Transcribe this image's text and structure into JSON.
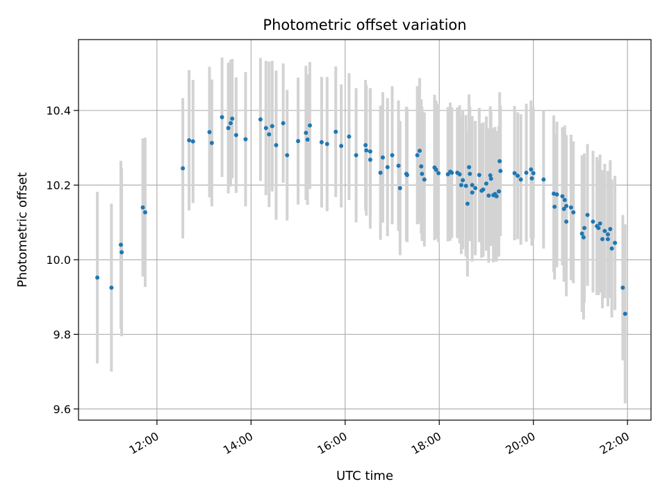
{
  "chart_data": {
    "type": "scatter",
    "title": "Photometric offset variation",
    "xlabel": "UTC time",
    "ylabel": "Photometric offset",
    "x_unit": "UTC time (HH:MM)",
    "xlim": [
      "10:20",
      "22:30"
    ],
    "ylim": [
      9.57,
      10.59
    ],
    "xticks": [
      "12:00",
      "14:00",
      "16:00",
      "18:00",
      "20:00",
      "22:00"
    ],
    "yticks": [
      9.6,
      9.8,
      10.0,
      10.2,
      10.4
    ],
    "ytick_labels": [
      "9.6",
      "9.8",
      "10.0",
      "10.2",
      "10.4"
    ],
    "grid": true,
    "marker_color": "#1f77b4",
    "errorbar_color": "#d3d3d3",
    "points": [
      [
        "10:44",
        9.952,
        0.23
      ],
      [
        "11:02",
        9.925,
        0.225
      ],
      [
        "11:14",
        10.04,
        0.225
      ],
      [
        "11:15",
        10.02,
        0.225
      ],
      [
        "11:42",
        10.14,
        0.185
      ],
      [
        "11:45",
        10.127,
        0.2
      ],
      [
        "12:33",
        10.245,
        0.188
      ],
      [
        "12:41",
        10.32,
        0.188
      ],
      [
        "12:46",
        10.317,
        0.165
      ],
      [
        "13:07",
        10.342,
        0.175
      ],
      [
        "13:10",
        10.313,
        0.17
      ],
      [
        "13:23",
        10.382,
        0.16
      ],
      [
        "13:31",
        10.353,
        0.175
      ],
      [
        "13:34",
        10.366,
        0.17
      ],
      [
        "13:36",
        10.378,
        0.16
      ],
      [
        "13:41",
        10.334,
        0.155
      ],
      [
        "13:53",
        10.323,
        0.18
      ],
      [
        "14:12",
        10.376,
        0.165
      ],
      [
        "14:19",
        10.353,
        0.18
      ],
      [
        "14:23",
        10.336,
        0.195
      ],
      [
        "14:27",
        10.358,
        0.175
      ],
      [
        "14:32",
        10.307,
        0.2
      ],
      [
        "14:41",
        10.366,
        0.16
      ],
      [
        "14:46",
        10.28,
        0.175
      ],
      [
        "15:00",
        10.318,
        0.17
      ],
      [
        "15:10",
        10.34,
        0.18
      ],
      [
        "15:12",
        10.322,
        0.175
      ],
      [
        "15:15",
        10.36,
        0.17
      ],
      [
        "15:30",
        10.315,
        0.175
      ],
      [
        "15:37",
        10.31,
        0.18
      ],
      [
        "15:48",
        10.343,
        0.175
      ],
      [
        "15:55",
        10.305,
        0.165
      ],
      [
        "16:05",
        10.33,
        0.17
      ],
      [
        "16:14",
        10.28,
        0.18
      ],
      [
        "16:26",
        10.307,
        0.175
      ],
      [
        "16:27",
        10.293,
        0.175
      ],
      [
        "16:32",
        10.29,
        0.17
      ],
      [
        "16:32",
        10.268,
        0.185
      ],
      [
        "16:45",
        10.233,
        0.18
      ],
      [
        "16:48",
        10.274,
        0.175
      ],
      [
        "16:54",
        10.248,
        0.185
      ],
      [
        "17:00",
        10.28,
        0.185
      ],
      [
        "17:08",
        10.252,
        0.175
      ],
      [
        "17:10",
        10.192,
        0.18
      ],
      [
        "17:18",
        10.23,
        0.18
      ],
      [
        "17:19",
        10.227,
        0.18
      ],
      [
        "17:32",
        10.28,
        0.185
      ],
      [
        "17:35",
        10.292,
        0.195
      ],
      [
        "17:37",
        10.25,
        0.18
      ],
      [
        "17:38",
        10.23,
        0.18
      ],
      [
        "17:41",
        10.215,
        0.18
      ],
      [
        "17:54",
        10.247,
        0.195
      ],
      [
        "17:56",
        10.241,
        0.185
      ],
      [
        "17:59",
        10.232,
        0.185
      ],
      [
        "18:11",
        10.229,
        0.18
      ],
      [
        "18:14",
        10.236,
        0.185
      ],
      [
        "18:16",
        10.233,
        0.175
      ],
      [
        "18:23",
        10.233,
        0.175
      ],
      [
        "18:26",
        10.229,
        0.185
      ],
      [
        "18:28",
        10.2,
        0.185
      ],
      [
        "18:30",
        10.213,
        0.185
      ],
      [
        "18:34",
        10.198,
        0.19
      ],
      [
        "18:36",
        10.15,
        0.195
      ],
      [
        "18:38",
        10.248,
        0.195
      ],
      [
        "18:39",
        10.23,
        0.18
      ],
      [
        "18:42",
        10.2,
        0.185
      ],
      [
        "18:42",
        10.18,
        0.185
      ],
      [
        "18:46",
        10.192,
        0.18
      ],
      [
        "18:51",
        10.227,
        0.18
      ],
      [
        "18:54",
        10.185,
        0.18
      ],
      [
        "18:56",
        10.188,
        0.18
      ],
      [
        "19:00",
        10.204,
        0.18
      ],
      [
        "19:03",
        10.172,
        0.18
      ],
      [
        "19:05",
        10.226,
        0.185
      ],
      [
        "19:06",
        10.217,
        0.18
      ],
      [
        "19:09",
        10.173,
        0.18
      ],
      [
        "19:11",
        10.176,
        0.18
      ],
      [
        "19:13",
        10.17,
        0.175
      ],
      [
        "19:16",
        10.183,
        0.175
      ],
      [
        "19:17",
        10.264,
        0.185
      ],
      [
        "19:18",
        10.238,
        0.175
      ],
      [
        "19:36",
        10.232,
        0.18
      ],
      [
        "19:40",
        10.225,
        0.17
      ],
      [
        "19:44",
        10.215,
        0.175
      ],
      [
        "19:51",
        10.233,
        0.185
      ],
      [
        "19:57",
        10.242,
        0.185
      ],
      [
        "19:58",
        10.218,
        0.18
      ],
      [
        "20:00",
        10.232,
        0.175
      ],
      [
        "20:13",
        10.215,
        0.185
      ],
      [
        "20:26",
        10.177,
        0.21
      ],
      [
        "20:27",
        10.142,
        0.195
      ],
      [
        "20:30",
        10.175,
        0.195
      ],
      [
        "20:37",
        10.17,
        0.185
      ],
      [
        "20:39",
        10.136,
        0.195
      ],
      [
        "20:40",
        10.16,
        0.2
      ],
      [
        "20:42",
        10.144,
        0.19
      ],
      [
        "20:42",
        10.102,
        0.2
      ],
      [
        "20:48",
        10.14,
        0.195
      ],
      [
        "20:51",
        10.127,
        0.19
      ],
      [
        "21:02",
        10.07,
        0.21
      ],
      [
        "21:04",
        10.06,
        0.22
      ],
      [
        "21:05",
        10.085,
        0.2
      ],
      [
        "21:09",
        10.12,
        0.19
      ],
      [
        "21:16",
        10.102,
        0.19
      ],
      [
        "21:21",
        10.09,
        0.185
      ],
      [
        "21:23",
        10.085,
        0.18
      ],
      [
        "21:25",
        10.097,
        0.185
      ],
      [
        "21:28",
        10.055,
        0.185
      ],
      [
        "21:31",
        10.077,
        0.18
      ],
      [
        "21:35",
        10.068,
        0.17
      ],
      [
        "21:35",
        10.055,
        0.18
      ],
      [
        "21:38",
        10.082,
        0.185
      ],
      [
        "21:40",
        10.03,
        0.185
      ],
      [
        "21:44",
        10.045,
        0.18
      ],
      [
        "21:54",
        9.925,
        0.195
      ],
      [
        "21:57",
        9.855,
        0.24
      ]
    ]
  }
}
